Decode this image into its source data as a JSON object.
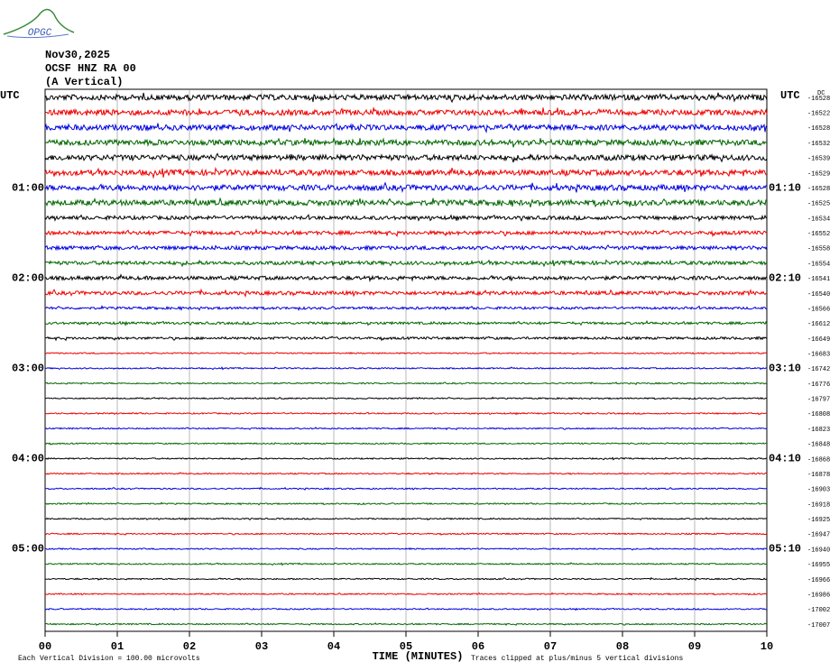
{
  "logo": "OPGC",
  "header": {
    "date": "Nov30,2025",
    "station": "OCSF HNZ RA 00",
    "component": "(A Vertical)"
  },
  "utc_left": "UTC",
  "utc_right": "UTC",
  "dc_label": "DC",
  "left_times": [
    "01:00",
    "02:00",
    "03:00",
    "04:00",
    "05:00"
  ],
  "right_times": [
    "01:10",
    "02:10",
    "03:10",
    "04:10",
    "05:10"
  ],
  "trace_offsets": [
    "-16528",
    "-16522",
    "-16528",
    "-16532",
    "-16539",
    "-16529",
    "-16528",
    "-16525",
    "-16534",
    "-16552",
    "-16558",
    "-16554",
    "-16541",
    "-16540",
    "-16566",
    "-16612",
    "-16649",
    "-16683",
    "-16742",
    "-16776",
    "-16797",
    "-16808",
    "-16823",
    "-16848",
    "-16868",
    "-16878",
    "-16903",
    "-16918",
    "-16925",
    "-16947",
    "-16940",
    "-16955",
    "-16966",
    "-16986",
    "-17002",
    "-17007"
  ],
  "x_labels": [
    "00",
    "01",
    "02",
    "03",
    "04",
    "05",
    "06",
    "07",
    "08",
    "09",
    "10"
  ],
  "x_title": "TIME (MINUTES)",
  "footer_left": "Each Vertical Division =  100.00 microvolts",
  "footer_right": "Traces clipped at plus/minus 5 vertical divisions"
}
